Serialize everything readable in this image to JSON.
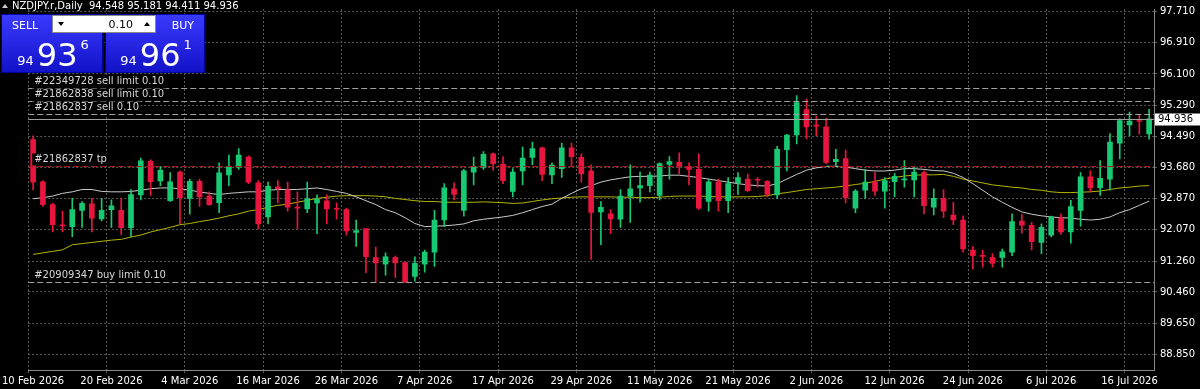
{
  "chart_data": {
    "type": "candlestick",
    "title": "NZDJPY.r,Daily  94.548 95.181 94.411 94.936",
    "categories": [
      "10 Feb 2026",
      null,
      null,
      null,
      null,
      null,
      null,
      null,
      "20 Feb 2026",
      null,
      null,
      null,
      null,
      null,
      null,
      null,
      "4 Mar 2026",
      null,
      null,
      null,
      null,
      null,
      null,
      null,
      "16 Mar 2026",
      null,
      null,
      null,
      null,
      null,
      null,
      null,
      "26 Mar 2026",
      null,
      null,
      null,
      null,
      null,
      null,
      null,
      "7 Apr 2026",
      null,
      null,
      null,
      null,
      null,
      null,
      null,
      "17 Apr 2026",
      null,
      null,
      null,
      null,
      null,
      null,
      null,
      "29 Apr 2026",
      null,
      null,
      null,
      null,
      null,
      null,
      null,
      "11 May 2026",
      null,
      null,
      null,
      null,
      null,
      null,
      null,
      "21 May 2026",
      null,
      null,
      null,
      null,
      null,
      null,
      null,
      "2 Jun 2026",
      null,
      null,
      null,
      null,
      null,
      null,
      null,
      "12 Jun 2026",
      null,
      null,
      null,
      null,
      null,
      null,
      null,
      "24 Jun 2026",
      null,
      null,
      null,
      null,
      null,
      null,
      null,
      "6 Jul 2026",
      null,
      null,
      null,
      null,
      null,
      null,
      null,
      "16 Jul 2026",
      null,
      null
    ],
    "ohlc": [
      [
        94.4,
        94.5,
        93.1,
        93.3
      ],
      [
        93.31,
        93.34,
        92.67,
        92.72
      ],
      [
        92.72,
        92.76,
        92.01,
        92.2
      ],
      [
        92.18,
        92.55,
        92.01,
        92.17
      ],
      [
        92.15,
        92.88,
        91.89,
        92.59
      ],
      [
        92.57,
        92.8,
        92.13,
        92.75
      ],
      [
        92.74,
        92.88,
        92.01,
        92.37
      ],
      [
        92.35,
        92.88,
        92.3,
        92.57
      ],
      [
        92.59,
        92.84,
        92.13,
        92.69
      ],
      [
        92.57,
        92.88,
        91.95,
        92.12
      ],
      [
        92.12,
        93.11,
        91.89,
        92.98
      ],
      [
        92.97,
        93.92,
        92.84,
        93.85
      ],
      [
        93.84,
        93.88,
        92.96,
        93.31
      ],
      [
        93.33,
        93.71,
        93.21,
        93.61
      ],
      [
        92.82,
        93.55,
        92.8,
        93.31
      ],
      [
        93.56,
        93.59,
        92.22,
        92.9
      ],
      [
        92.88,
        93.38,
        92.47,
        93.32
      ],
      [
        93.32,
        93.38,
        92.67,
        92.92
      ],
      [
        92.94,
        93.05,
        92.7,
        92.72
      ],
      [
        92.77,
        93.8,
        92.51,
        93.54
      ],
      [
        93.49,
        94.0,
        93.21,
        93.71
      ],
      [
        93.69,
        94.17,
        93.63,
        94.0
      ],
      [
        93.95,
        93.98,
        93.26,
        93.3
      ],
      [
        93.28,
        93.34,
        92.09,
        92.22
      ],
      [
        92.4,
        93.3,
        92.22,
        93.19
      ],
      [
        93.18,
        93.34,
        92.76,
        93.13
      ],
      [
        93.1,
        93.3,
        92.55,
        92.65
      ],
      [
        92.65,
        93.05,
        92.09,
        92.63
      ],
      [
        92.61,
        93.3,
        92.51,
        92.87
      ],
      [
        92.76,
        92.97,
        91.97,
        92.86
      ],
      [
        92.82,
        92.97,
        92.22,
        92.61
      ],
      [
        92.61,
        92.76,
        92.34,
        92.6
      ],
      [
        92.59,
        92.63,
        91.93,
        92.04
      ],
      [
        92.0,
        92.32,
        91.64,
        92.05
      ],
      [
        92.1,
        92.1,
        90.96,
        91.37
      ],
      [
        91.35,
        91.62,
        90.71,
        91.21
      ],
      [
        91.18,
        91.47,
        90.89,
        91.37
      ],
      [
        91.35,
        91.39,
        90.83,
        91.21
      ],
      [
        91.22,
        91.24,
        90.7,
        90.71
      ],
      [
        90.86,
        91.37,
        90.74,
        91.2
      ],
      [
        91.18,
        91.54,
        90.97,
        91.49
      ],
      [
        91.49,
        92.57,
        91.12,
        92.32
      ],
      [
        92.32,
        93.26,
        92.15,
        93.15
      ],
      [
        93.13,
        93.28,
        92.84,
        92.98
      ],
      [
        92.57,
        93.63,
        92.42,
        93.59
      ],
      [
        93.56,
        93.95,
        93.23,
        93.7
      ],
      [
        93.69,
        94.09,
        93.63,
        94.02
      ],
      [
        94.03,
        94.06,
        93.61,
        93.78
      ],
      [
        93.77,
        93.96,
        93.26,
        93.34
      ],
      [
        93.06,
        93.65,
        92.92,
        93.56
      ],
      [
        93.59,
        94.21,
        93.23,
        93.92
      ],
      [
        93.94,
        94.34,
        93.75,
        94.17
      ],
      [
        94.19,
        94.21,
        93.34,
        93.5
      ],
      [
        93.49,
        93.8,
        93.26,
        93.74
      ],
      [
        93.65,
        94.31,
        93.42,
        94.19
      ],
      [
        94.19,
        94.31,
        93.71,
        93.96
      ],
      [
        93.94,
        94.03,
        93.3,
        93.52
      ],
      [
        93.59,
        93.75,
        91.3,
        92.52
      ],
      [
        92.53,
        92.8,
        91.68,
        92.65
      ],
      [
        92.48,
        92.59,
        91.97,
        92.35
      ],
      [
        92.34,
        93.11,
        92.13,
        92.94
      ],
      [
        92.94,
        93.75,
        92.26,
        93.13
      ],
      [
        93.15,
        93.56,
        92.78,
        93.21
      ],
      [
        93.21,
        93.56,
        93.05,
        93.48
      ],
      [
        92.96,
        93.8,
        92.84,
        93.78
      ],
      [
        93.76,
        93.96,
        93.38,
        93.83
      ],
      [
        93.81,
        94.06,
        93.51,
        93.71
      ],
      [
        93.71,
        93.8,
        93.23,
        93.63
      ],
      [
        93.63,
        94.03,
        92.59,
        92.63
      ],
      [
        92.8,
        93.38,
        92.55,
        93.31
      ],
      [
        93.3,
        93.38,
        92.55,
        92.82
      ],
      [
        92.82,
        93.42,
        92.51,
        93.26
      ],
      [
        93.28,
        93.55,
        92.98,
        93.42
      ],
      [
        93.38,
        93.51,
        93.06,
        93.08
      ],
      [
        93.36,
        93.42,
        93.17,
        93.35
      ],
      [
        93.32,
        93.34,
        92.92,
        92.98
      ],
      [
        92.97,
        94.23,
        92.88,
        94.15
      ],
      [
        94.14,
        94.54,
        93.59,
        94.52
      ],
      [
        94.52,
        95.54,
        94.29,
        95.36
      ],
      [
        95.18,
        95.44,
        94.42,
        94.73
      ],
      [
        94.76,
        95.0,
        94.5,
        94.75
      ],
      [
        94.73,
        94.96,
        93.78,
        93.81
      ],
      [
        93.83,
        94.15,
        93.71,
        93.89
      ],
      [
        93.91,
        94.13,
        92.76,
        92.9
      ],
      [
        92.63,
        93.11,
        92.51,
        93.07
      ],
      [
        93.09,
        93.63,
        92.88,
        93.3
      ],
      [
        93.31,
        93.55,
        92.96,
        93.07
      ],
      [
        93.07,
        93.42,
        92.63,
        93.34
      ],
      [
        93.31,
        93.53,
        92.92,
        93.45
      ],
      [
        93.36,
        93.86,
        93.17,
        93.37
      ],
      [
        93.36,
        93.71,
        92.92,
        93.56
      ],
      [
        93.55,
        93.59,
        92.48,
        92.69
      ],
      [
        92.65,
        93.13,
        92.45,
        92.88
      ],
      [
        92.88,
        93.11,
        92.38,
        92.55
      ],
      [
        92.45,
        92.78,
        92.2,
        92.32
      ],
      [
        92.32,
        92.43,
        91.49,
        91.57
      ],
      [
        91.54,
        91.64,
        91.05,
        91.4
      ],
      [
        91.39,
        91.54,
        91.1,
        91.38
      ],
      [
        91.35,
        91.45,
        91.1,
        91.2
      ],
      [
        91.35,
        91.57,
        91.1,
        91.5
      ],
      [
        91.49,
        92.48,
        91.4,
        92.28
      ],
      [
        92.29,
        92.47,
        91.98,
        92.19
      ],
      [
        92.18,
        92.26,
        91.55,
        91.76
      ],
      [
        91.74,
        92.22,
        91.45,
        92.13
      ],
      [
        91.93,
        92.42,
        91.88,
        92.4
      ],
      [
        92.38,
        92.48,
        91.95,
        92.01
      ],
      [
        92.01,
        92.83,
        91.72,
        92.67
      ],
      [
        92.57,
        93.55,
        92.16,
        93.44
      ],
      [
        93.44,
        93.59,
        93.05,
        93.15
      ],
      [
        93.16,
        93.86,
        92.96,
        93.4
      ],
      [
        93.38,
        94.56,
        93.09,
        94.34
      ],
      [
        94.31,
        94.94,
        93.9,
        94.89
      ],
      [
        94.78,
        95.11,
        94.5,
        94.88
      ],
      [
        94.88,
        95.04,
        94.54,
        94.87
      ],
      [
        94.548,
        95.181,
        94.411,
        94.936
      ]
    ],
    "series": [
      {
        "type": "line",
        "color": "#c8c8c8",
        "values": [
          92.87,
          92.9,
          92.94,
          93.01,
          93.05,
          93.11,
          93.11,
          93.06,
          93.05,
          93.05,
          93.06,
          93.09,
          93.13,
          93.15,
          93.15,
          93.13,
          93.09,
          93.05,
          93.01,
          92.98,
          93.01,
          93.03,
          93.05,
          93.05,
          93.09,
          93.11,
          93.11,
          93.11,
          93.13,
          93.15,
          93.11,
          93.06,
          93.01,
          92.92,
          92.82,
          92.72,
          92.59,
          92.51,
          92.38,
          92.23,
          92.15,
          92.16,
          92.17,
          92.19,
          92.22,
          92.3,
          92.34,
          92.37,
          92.4,
          92.44,
          92.51,
          92.59,
          92.67,
          92.73,
          92.88,
          93.01,
          93.13,
          93.21,
          93.3,
          93.36,
          93.4,
          93.44,
          93.45,
          93.45,
          93.46,
          93.48,
          93.48,
          93.45,
          93.42,
          93.38,
          93.34,
          93.3,
          93.26,
          93.23,
          93.21,
          93.2,
          93.26,
          93.38,
          93.5,
          93.61,
          93.67,
          93.71,
          93.71,
          93.69,
          93.65,
          93.61,
          93.59,
          93.59,
          93.61,
          93.65,
          93.65,
          93.63,
          93.6,
          93.59,
          93.53,
          93.42,
          93.26,
          93.09,
          92.92,
          92.78,
          92.65,
          92.53,
          92.47,
          92.43,
          92.4,
          92.38,
          92.37,
          92.34,
          92.32,
          92.34,
          92.4,
          92.51,
          92.59,
          92.7,
          92.81
        ]
      },
      {
        "type": "line",
        "color": "#b4b400",
        "values": [
          91.43,
          91.47,
          91.51,
          91.55,
          91.68,
          91.71,
          91.74,
          91.77,
          91.8,
          91.82,
          91.88,
          91.93,
          92.01,
          92.07,
          92.13,
          92.2,
          92.23,
          92.28,
          92.32,
          92.37,
          92.43,
          92.48,
          92.55,
          92.59,
          92.65,
          92.7,
          92.73,
          92.78,
          92.83,
          92.88,
          92.91,
          92.94,
          92.95,
          92.95,
          92.95,
          92.94,
          92.92,
          92.88,
          92.85,
          92.82,
          92.8,
          92.8,
          92.78,
          92.78,
          92.78,
          92.78,
          92.79,
          92.78,
          92.77,
          92.75,
          92.76,
          92.8,
          92.84,
          92.87,
          92.89,
          92.91,
          92.92,
          92.92,
          92.92,
          92.92,
          92.91,
          92.91,
          92.9,
          92.9,
          92.91,
          92.93,
          92.94,
          92.94,
          92.94,
          92.93,
          92.92,
          92.92,
          92.92,
          92.92,
          92.93,
          92.95,
          93.0,
          93.03,
          93.07,
          93.11,
          93.13,
          93.15,
          93.17,
          93.2,
          93.24,
          93.27,
          93.32,
          93.38,
          93.42,
          93.46,
          93.48,
          93.49,
          93.49,
          93.5,
          93.45,
          93.38,
          93.33,
          93.28,
          93.23,
          93.2,
          93.17,
          93.15,
          93.11,
          93.09,
          93.05,
          93.03,
          93.03,
          93.04,
          93.05,
          93.07,
          93.11,
          93.15,
          93.17,
          93.2,
          93.21
        ]
      }
    ],
    "ylim": [
      88.44,
      97.78
    ],
    "yticks": [
      {
        "value": 88.85,
        "label": "88.850"
      },
      {
        "value": 89.65,
        "label": "89.650"
      },
      {
        "value": 90.46,
        "label": "90.460"
      },
      {
        "value": 91.26,
        "label": "91.260"
      },
      {
        "value": 92.07,
        "label": "92.070"
      },
      {
        "value": 92.87,
        "label": "92.870"
      },
      {
        "value": 93.68,
        "label": "93.680"
      },
      {
        "value": 94.49,
        "label": "94.490"
      },
      {
        "value": 95.29,
        "label": "95.290"
      },
      {
        "value": 96.1,
        "label": "96.100"
      },
      {
        "value": 96.91,
        "label": "96.910"
      },
      {
        "value": 97.71,
        "label": "97.710"
      }
    ],
    "grid": true,
    "ref_lines": [
      {
        "axis": "y",
        "value": 95.74,
        "label": "#22349728 sell limit 0.10",
        "color": "#a0a0a0",
        "line_style": "dashed"
      },
      {
        "axis": "y",
        "value": 95.41,
        "label": "#21862838 sell limit 0.10",
        "color": "#a0a0a0",
        "line_style": "dashed"
      },
      {
        "axis": "y",
        "value": 95.07,
        "label": "#21862837 sell 0.10",
        "color": "#a0a0a0",
        "line_style": "dashed"
      },
      {
        "axis": "y",
        "value": 94.936,
        "label": "94.936",
        "color": "#a0a0a0",
        "line_style": "solid"
      },
      {
        "axis": "y",
        "value": 93.71,
        "label": "#21862837 tp",
        "color": "#b01818",
        "line_style": "dashed"
      },
      {
        "axis": "y",
        "value": 90.72,
        "label": "#20909347 buy limit 0.10",
        "color": "#a0a0a0",
        "line_style": "dashed"
      }
    ],
    "annotations": [
      "SELL",
      "0.10",
      "BUY",
      "94936",
      "94961"
    ],
    "legend": false
  }
}
